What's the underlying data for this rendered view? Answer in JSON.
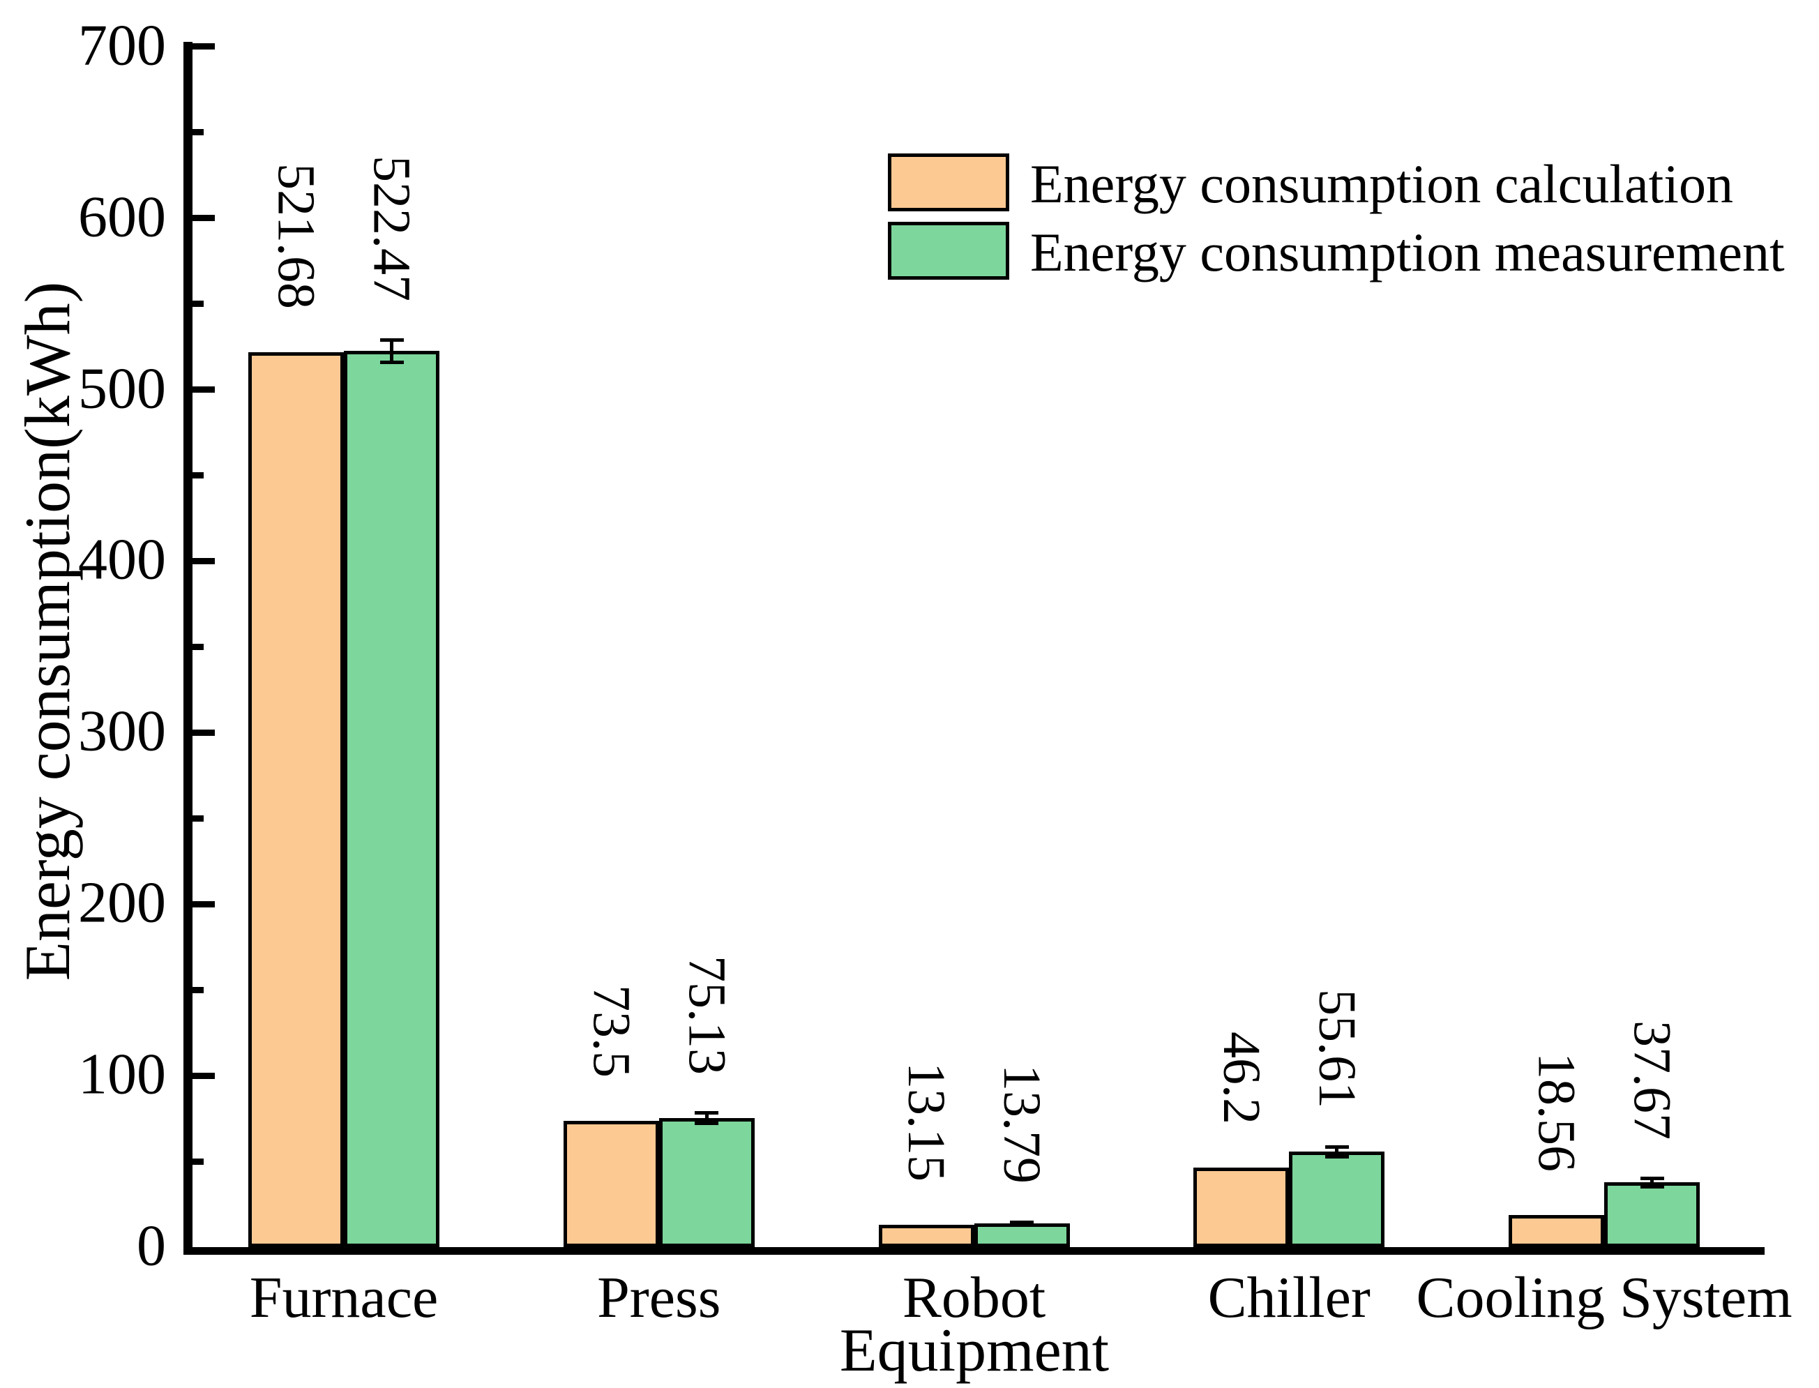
{
  "chart_data": {
    "type": "bar",
    "title": "",
    "categories": [
      "Furnace",
      "Press",
      "Robot",
      "Chiller",
      "Cooling System"
    ],
    "series": [
      {
        "name": "Energy consumption calculation",
        "color": "#FDC992",
        "values": [
          521.68,
          73.5,
          13.15,
          46.2,
          18.56
        ],
        "labels": [
          "521.68",
          "73.5",
          "13.15",
          "46.2",
          "18.56"
        ]
      },
      {
        "name": "Energy consumption measurement",
        "color": "#7DD69C",
        "values": [
          522.47,
          75.13,
          13.79,
          55.61,
          37.67
        ],
        "labels": [
          "522.47",
          "75.13",
          "13.79",
          "55.61",
          "37.67"
        ],
        "error_bars": [
          6.5,
          3,
          0.8,
          2.9,
          2.4
        ]
      }
    ],
    "xlabel": "Equipment",
    "ylabel": "Energy consumption(kWh)",
    "ylim": [
      0,
      700
    ],
    "ytick_major_step": 100,
    "ytick_minor_step": 50,
    "ytick_labels": [
      "0",
      "100",
      "200",
      "300",
      "400",
      "500",
      "600",
      "700"
    ],
    "grid": false,
    "bar_outline_color": "#000000",
    "value_label_rotation_deg": 90,
    "axes_shown": [
      "left",
      "bottom"
    ],
    "legend": {
      "position": "top-right-inside",
      "entries": [
        "Energy consumption calculation",
        "Energy consumption measurement"
      ]
    }
  }
}
